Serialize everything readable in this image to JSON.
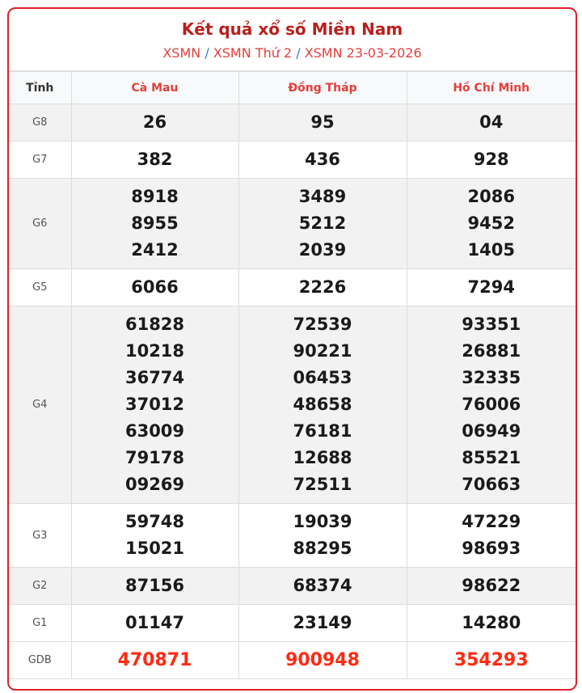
{
  "header": {
    "title": "Kết quả xổ số Miền Nam",
    "breadcrumb": [
      "XSMN",
      "XSMN Thứ 2",
      "XSMN 23-03-2026"
    ],
    "separator": "/"
  },
  "table": {
    "columns": [
      "Tỉnh",
      "Cà Mau",
      "Đồng Tháp",
      "Hồ Chí Minh"
    ],
    "rows": [
      {
        "label": "G8",
        "shaded": true,
        "values": [
          [
            "26"
          ],
          [
            "95"
          ],
          [
            "04"
          ]
        ]
      },
      {
        "label": "G7",
        "shaded": false,
        "values": [
          [
            "382"
          ],
          [
            "436"
          ],
          [
            "928"
          ]
        ]
      },
      {
        "label": "G6",
        "shaded": true,
        "values": [
          [
            "8918",
            "8955",
            "2412"
          ],
          [
            "3489",
            "5212",
            "2039"
          ],
          [
            "2086",
            "9452",
            "1405"
          ]
        ]
      },
      {
        "label": "G5",
        "shaded": false,
        "values": [
          [
            "6066"
          ],
          [
            "2226"
          ],
          [
            "7294"
          ]
        ]
      },
      {
        "label": "G4",
        "shaded": true,
        "values": [
          [
            "61828",
            "10218",
            "36774",
            "37012",
            "63009",
            "79178",
            "09269"
          ],
          [
            "72539",
            "90221",
            "06453",
            "48658",
            "76181",
            "12688",
            "72511"
          ],
          [
            "93351",
            "26881",
            "32335",
            "76006",
            "06949",
            "85521",
            "70663"
          ]
        ]
      },
      {
        "label": "G3",
        "shaded": false,
        "values": [
          [
            "59748",
            "15021"
          ],
          [
            "19039",
            "88295"
          ],
          [
            "47229",
            "98693"
          ]
        ]
      },
      {
        "label": "G2",
        "shaded": true,
        "values": [
          [
            "87156"
          ],
          [
            "68374"
          ],
          [
            "98622"
          ]
        ]
      },
      {
        "label": "G1",
        "shaded": false,
        "values": [
          [
            "01147"
          ],
          [
            "23149"
          ],
          [
            "14280"
          ]
        ]
      },
      {
        "label": "GDB",
        "shaded": false,
        "special": true,
        "values": [
          [
            "470871"
          ],
          [
            "900948"
          ],
          [
            "354293"
          ]
        ]
      }
    ]
  },
  "colors": {
    "border": "#e0202a",
    "title": "#b8201e",
    "link": "#e2403c",
    "special_prize": "#ff2a12"
  }
}
